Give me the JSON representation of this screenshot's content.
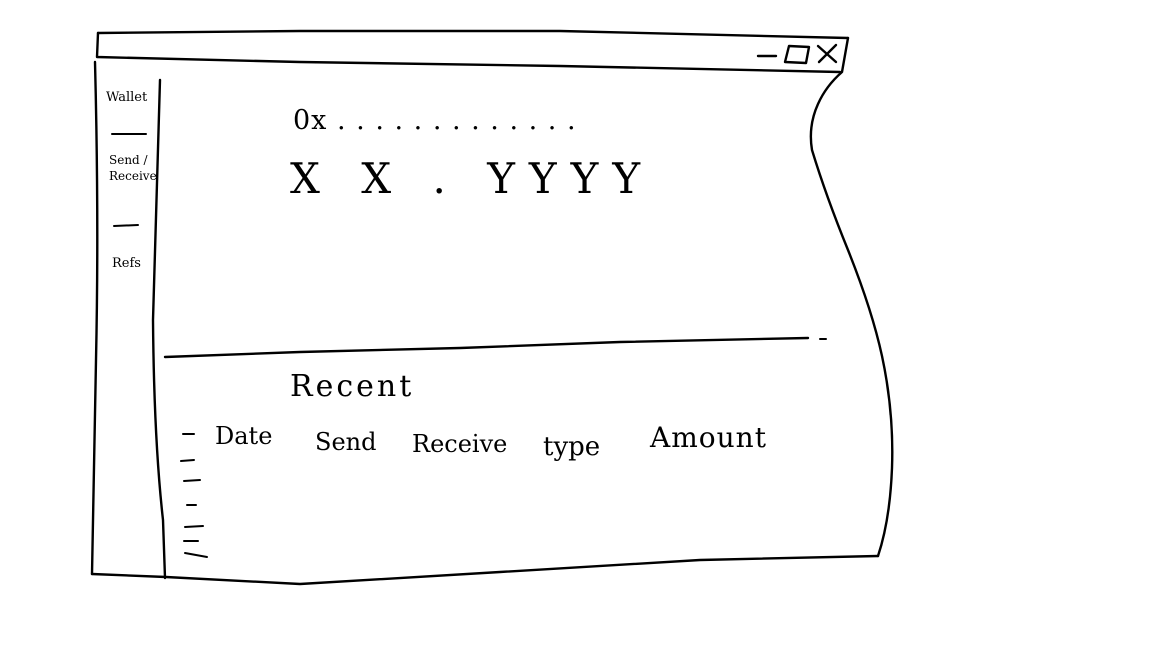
{
  "window": {
    "controls": {
      "minimize": "minimize-icon",
      "maximize": "maximize-icon",
      "close": "close-icon"
    }
  },
  "sidebar": {
    "items": [
      {
        "label": "Wallet"
      },
      {
        "label": "Send / Receive"
      },
      {
        "label": "Refs"
      }
    ]
  },
  "wallet": {
    "address": "0x . . . . . . . . . . . . .",
    "balance": "X  X . YYYY"
  },
  "recent": {
    "title": "Recent",
    "columns": [
      "Date",
      "Send",
      "Receive",
      "type",
      "Amount"
    ],
    "rows": 6
  }
}
